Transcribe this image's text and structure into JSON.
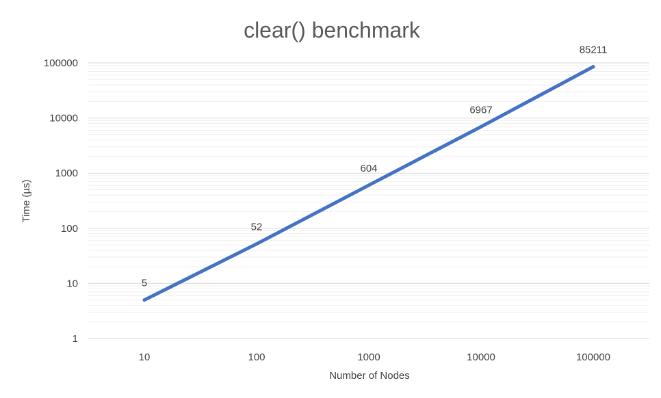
{
  "chart_data": {
    "type": "line",
    "title": "clear() benchmark",
    "xlabel": "Number of Nodes",
    "ylabel": "Time (µs)",
    "categories": [
      "10",
      "100",
      "1000",
      "10000",
      "100000"
    ],
    "series": [
      {
        "values": [
          5,
          52,
          604,
          6967,
          85211
        ]
      }
    ],
    "data_labels": [
      "5",
      "52",
      "604",
      "6967",
      "85211"
    ],
    "y_scale": "log",
    "ylim": [
      1,
      100000
    ],
    "y_ticks": [
      "1",
      "10",
      "100",
      "1000",
      "10000",
      "100000"
    ],
    "grid": true,
    "legend": "none",
    "line_color": "#4472C4",
    "grid_color": "#D9D9D9"
  }
}
